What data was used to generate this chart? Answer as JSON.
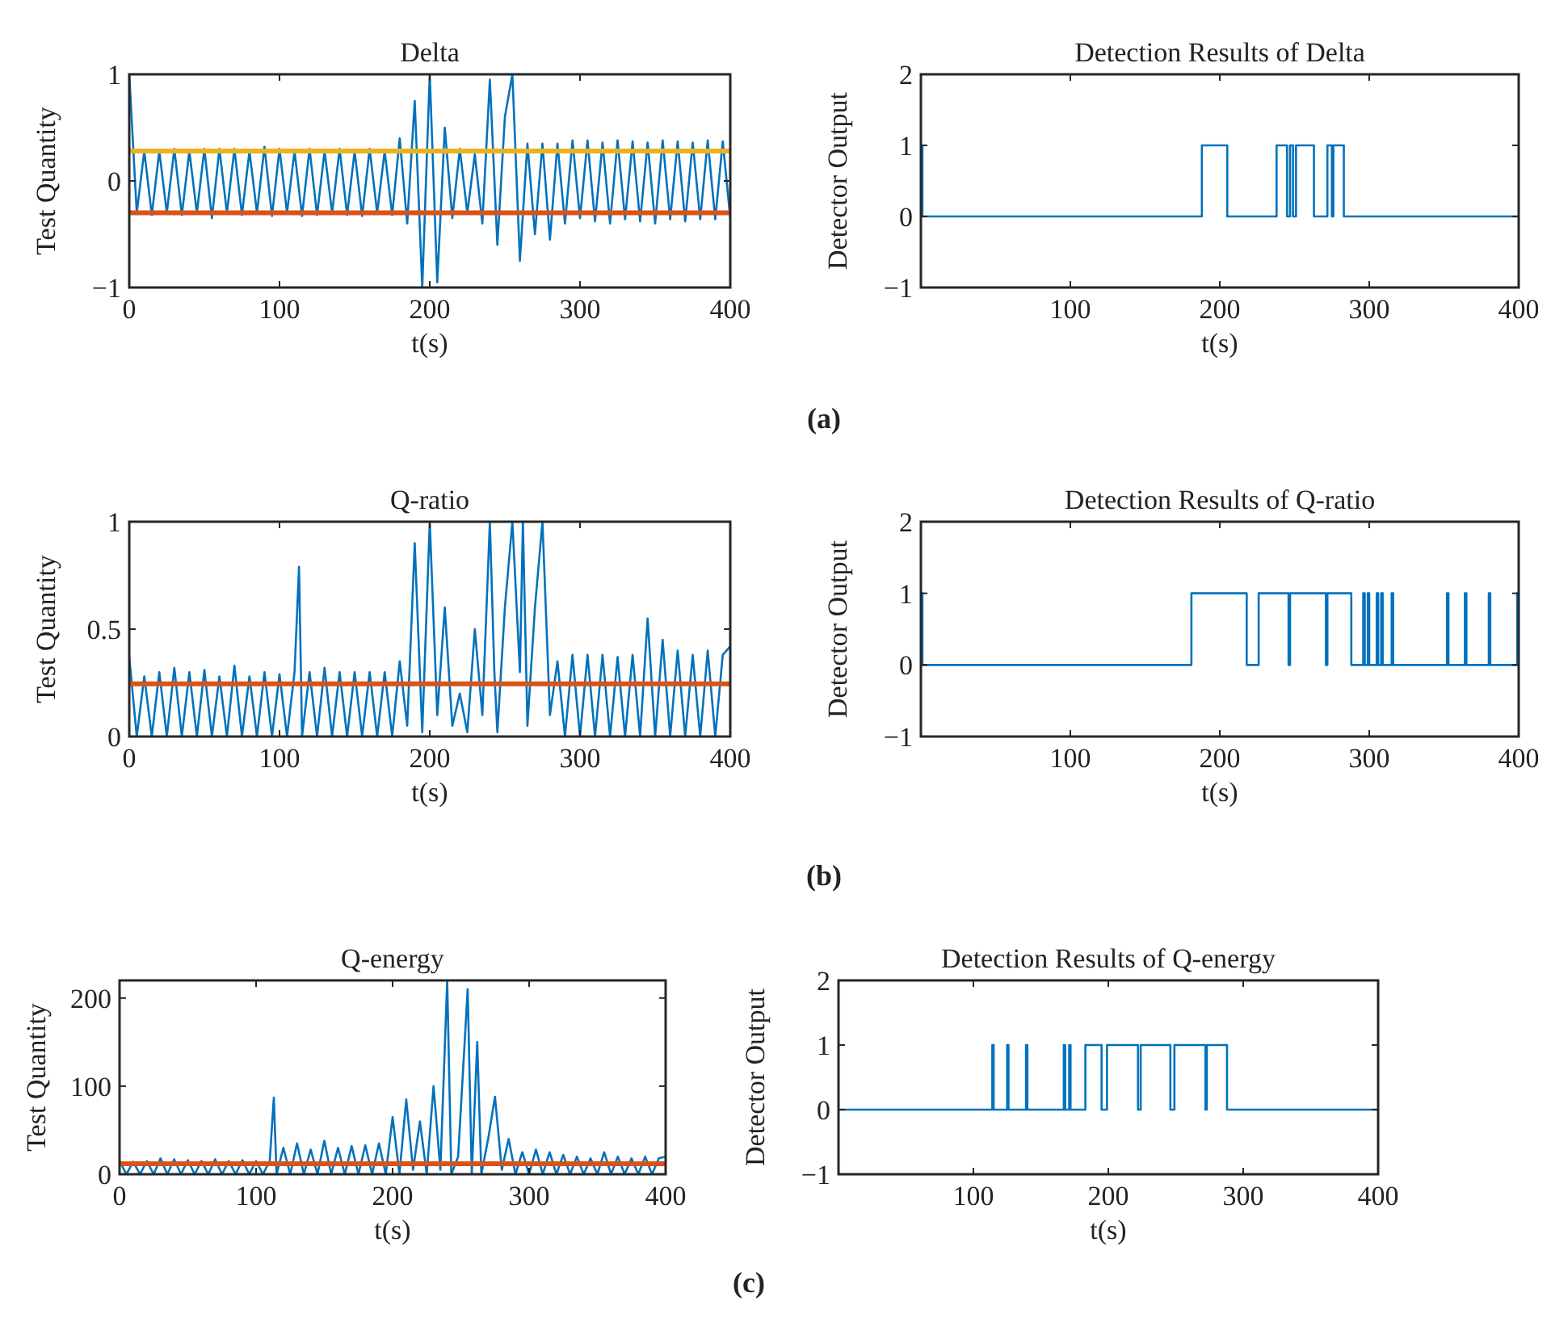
{
  "chart_data": [
    {
      "type": "line",
      "title": "Delta",
      "xlabel": "t(s)",
      "ylabel": "Test Quantity",
      "xlim": [
        0,
        400
      ],
      "xticks": [
        0,
        100,
        200,
        300,
        400
      ],
      "ylim": [
        -1,
        1
      ],
      "yticks": [
        -1,
        0,
        1
      ],
      "annotations": [
        "(a)"
      ],
      "series": [
        {
          "color": "#0072bd",
          "x": [
            0,
            5,
            10,
            15,
            20,
            25,
            30,
            35,
            40,
            45,
            50,
            55,
            60,
            65,
            70,
            75,
            80,
            85,
            90,
            95,
            100,
            105,
            110,
            115,
            120,
            125,
            130,
            135,
            140,
            145,
            150,
            155,
            160,
            165,
            170,
            175,
            180,
            185,
            190,
            195,
            200,
            205,
            210,
            215,
            220,
            225,
            230,
            235,
            240,
            245,
            250,
            255,
            260,
            265,
            270,
            275,
            280,
            285,
            290,
            295,
            300,
            305,
            310,
            315,
            320,
            325,
            330,
            335,
            340,
            345,
            350,
            355,
            360,
            365,
            370,
            375,
            380,
            385,
            390,
            395,
            400
          ],
          "values": [
            1,
            -0.3,
            0.28,
            -0.32,
            0.28,
            -0.3,
            0.3,
            -0.32,
            0.28,
            -0.3,
            0.3,
            -0.35,
            0.3,
            -0.3,
            0.3,
            -0.32,
            0.28,
            -0.3,
            0.32,
            -0.33,
            0.3,
            -0.3,
            0.28,
            -0.33,
            0.3,
            -0.32,
            0.28,
            -0.3,
            0.3,
            -0.32,
            0.28,
            -0.33,
            0.3,
            -0.3,
            0.28,
            -0.32,
            0.4,
            -0.4,
            0.75,
            -1,
            1,
            -0.95,
            0.5,
            -0.35,
            0.3,
            -0.3,
            0.25,
            -0.4,
            0.95,
            -0.6,
            0.6,
            1,
            -0.75,
            0.35,
            -0.5,
            0.35,
            -0.55,
            0.35,
            -0.4,
            0.38,
            -0.35,
            0.38,
            -0.38,
            0.36,
            -0.4,
            0.38,
            -0.36,
            0.37,
            -0.38,
            0.36,
            -0.4,
            0.38,
            -0.36,
            0.37,
            -0.38,
            0.36,
            -0.36,
            0.38,
            -0.36,
            0.37,
            -0.35
          ]
        }
      ],
      "ref_lines": [
        {
          "axis": "y",
          "value": 0.28,
          "color": "#edb120"
        },
        {
          "axis": "y",
          "value": -0.3,
          "color": "#d95319"
        }
      ]
    },
    {
      "type": "step",
      "title": "Detection Results of Delta",
      "xlabel": "t(s)",
      "ylabel": "Detector Output",
      "xlim": [
        0,
        400
      ],
      "xticks": [
        100,
        200,
        300,
        400
      ],
      "ylim": [
        -1,
        2
      ],
      "yticks": [
        -1,
        0,
        1,
        2
      ],
      "series": [
        {
          "color": "#0072bd",
          "x": [
            0,
            1,
            188,
            205,
            238,
            245,
            247,
            249,
            251,
            263,
            272,
            275,
            276,
            283,
            400
          ],
          "values": [
            1,
            0,
            1,
            0,
            1,
            0,
            1,
            0,
            1,
            0,
            1,
            0,
            1,
            0,
            0
          ]
        }
      ]
    },
    {
      "type": "line",
      "title": "Q-ratio",
      "xlabel": "t(s)",
      "ylabel": "Test Quantity",
      "xlim": [
        0,
        400
      ],
      "xticks": [
        0,
        100,
        200,
        300,
        400
      ],
      "ylim": [
        0,
        1
      ],
      "yticks": [
        0,
        0.5,
        1
      ],
      "annotations": [
        "(b)"
      ],
      "series": [
        {
          "color": "#0072bd",
          "x": [
            0,
            5,
            10,
            15,
            20,
            25,
            30,
            35,
            40,
            45,
            50,
            55,
            60,
            65,
            70,
            75,
            80,
            85,
            90,
            95,
            100,
            105,
            110,
            113,
            115,
            120,
            125,
            130,
            135,
            140,
            145,
            150,
            155,
            160,
            165,
            170,
            175,
            180,
            185,
            190,
            195,
            200,
            205,
            210,
            215,
            220,
            225,
            230,
            235,
            240,
            243,
            245,
            250,
            255,
            260,
            262,
            265,
            270,
            275,
            280,
            285,
            290,
            295,
            300,
            305,
            310,
            315,
            320,
            325,
            330,
            335,
            340,
            345,
            350,
            355,
            360,
            365,
            370,
            375,
            380,
            385,
            390,
            395,
            400
          ],
          "values": [
            0.37,
            0,
            0.28,
            0,
            0.3,
            0,
            0.32,
            0,
            0.3,
            0,
            0.31,
            0,
            0.28,
            0,
            0.33,
            0,
            0.28,
            0,
            0.3,
            0,
            0.29,
            0,
            0.3,
            0.79,
            0,
            0.3,
            0,
            0.32,
            0,
            0.3,
            0,
            0.3,
            0,
            0.3,
            0,
            0.3,
            0,
            0.35,
            0.05,
            0.9,
            0.02,
            1,
            0.1,
            0.6,
            0.05,
            0.2,
            0.02,
            0.5,
            0.1,
            1,
            0.3,
            0.02,
            0.6,
            1,
            0.3,
            1,
            0.05,
            0.6,
            1,
            0.1,
            0.35,
            0,
            0.38,
            0,
            0.38,
            0,
            0.38,
            0,
            0.37,
            0,
            0.38,
            0,
            0.55,
            0,
            0.45,
            0,
            0.4,
            0,
            0.38,
            0,
            0.4,
            0,
            0.38,
            0.42
          ]
        }
      ],
      "ref_lines": [
        {
          "axis": "y",
          "value": 0.245,
          "color": "#d95319"
        }
      ]
    },
    {
      "type": "step",
      "title": "Detection Results of Q-ratio",
      "xlabel": "t(s)",
      "ylabel": "Detector Output",
      "xlim": [
        0,
        400
      ],
      "xticks": [
        100,
        200,
        300,
        400
      ],
      "ylim": [
        -1,
        2
      ],
      "yticks": [
        -1,
        0,
        1,
        2
      ],
      "series": [
        {
          "color": "#0072bd",
          "x": [
            0,
            1,
            181,
            218,
            226,
            246,
            247,
            271,
            272,
            288,
            296,
            297,
            299,
            300,
            305,
            306,
            308,
            309,
            315,
            316,
            352,
            353,
            364,
            365,
            380,
            381,
            399,
            400
          ],
          "values": [
            1,
            0,
            1,
            0,
            1,
            0,
            1,
            0,
            1,
            0,
            1,
            0,
            1,
            0,
            1,
            0,
            1,
            0,
            1,
            0,
            1,
            0,
            1,
            0,
            1,
            0,
            1,
            1
          ]
        }
      ]
    },
    {
      "type": "line",
      "title": "Q-energy",
      "xlabel": "t(s)",
      "ylabel": "Test Quantity",
      "xlim": [
        0,
        400
      ],
      "xticks": [
        0,
        100,
        200,
        300,
        400
      ],
      "ylim": [
        0,
        220
      ],
      "yticks": [
        0,
        100,
        200
      ],
      "annotations": [
        "(c)"
      ],
      "series": [
        {
          "color": "#0072bd",
          "x": [
            0,
            5,
            10,
            15,
            20,
            25,
            30,
            35,
            40,
            45,
            50,
            55,
            60,
            65,
            70,
            75,
            80,
            85,
            90,
            95,
            100,
            105,
            110,
            113,
            115,
            120,
            125,
            130,
            135,
            140,
            145,
            150,
            155,
            160,
            165,
            170,
            175,
            180,
            185,
            190,
            195,
            200,
            205,
            210,
            215,
            220,
            225,
            230,
            235,
            240,
            243,
            248,
            255,
            258,
            262,
            265,
            270,
            275,
            280,
            285,
            290,
            295,
            300,
            305,
            310,
            315,
            320,
            325,
            330,
            335,
            340,
            345,
            350,
            355,
            360,
            365,
            370,
            375,
            380,
            385,
            390,
            395,
            400
          ],
          "values": [
            15,
            0,
            14,
            0,
            15,
            0,
            18,
            0,
            17,
            0,
            16,
            0,
            15,
            0,
            17,
            0,
            15,
            0,
            16,
            0,
            15,
            0,
            15,
            87,
            0,
            30,
            0,
            35,
            0,
            28,
            0,
            38,
            0,
            30,
            0,
            32,
            0,
            33,
            0,
            35,
            0,
            65,
            0,
            85,
            5,
            60,
            0,
            100,
            5,
            220,
            0,
            20,
            210,
            0,
            150,
            0,
            40,
            88,
            5,
            40,
            0,
            25,
            0,
            28,
            0,
            25,
            0,
            22,
            0,
            20,
            0,
            18,
            0,
            25,
            0,
            20,
            0,
            18,
            0,
            20,
            0,
            18,
            20
          ]
        }
      ],
      "ref_lines": [
        {
          "axis": "y",
          "value": 12,
          "color": "#d95319"
        }
      ]
    },
    {
      "type": "step",
      "title": "Detection Results of Q-energy",
      "xlabel": "t(s)",
      "ylabel": "Detector Output",
      "xlim": [
        0,
        400
      ],
      "xticks": [
        100,
        200,
        300,
        400
      ],
      "ylim": [
        -1,
        2
      ],
      "yticks": [
        -1,
        0,
        1,
        2
      ],
      "series": [
        {
          "color": "#0072bd",
          "x": [
            0,
            114,
            115,
            125,
            126,
            139,
            140,
            167,
            168,
            171,
            172,
            183,
            195,
            199,
            222,
            224,
            246,
            249,
            272,
            273,
            288,
            400
          ],
          "values": [
            0,
            1,
            0,
            1,
            0,
            1,
            0,
            1,
            0,
            1,
            0,
            1,
            0,
            1,
            0,
            1,
            0,
            1,
            0,
            1,
            0,
            0
          ]
        }
      ]
    }
  ]
}
